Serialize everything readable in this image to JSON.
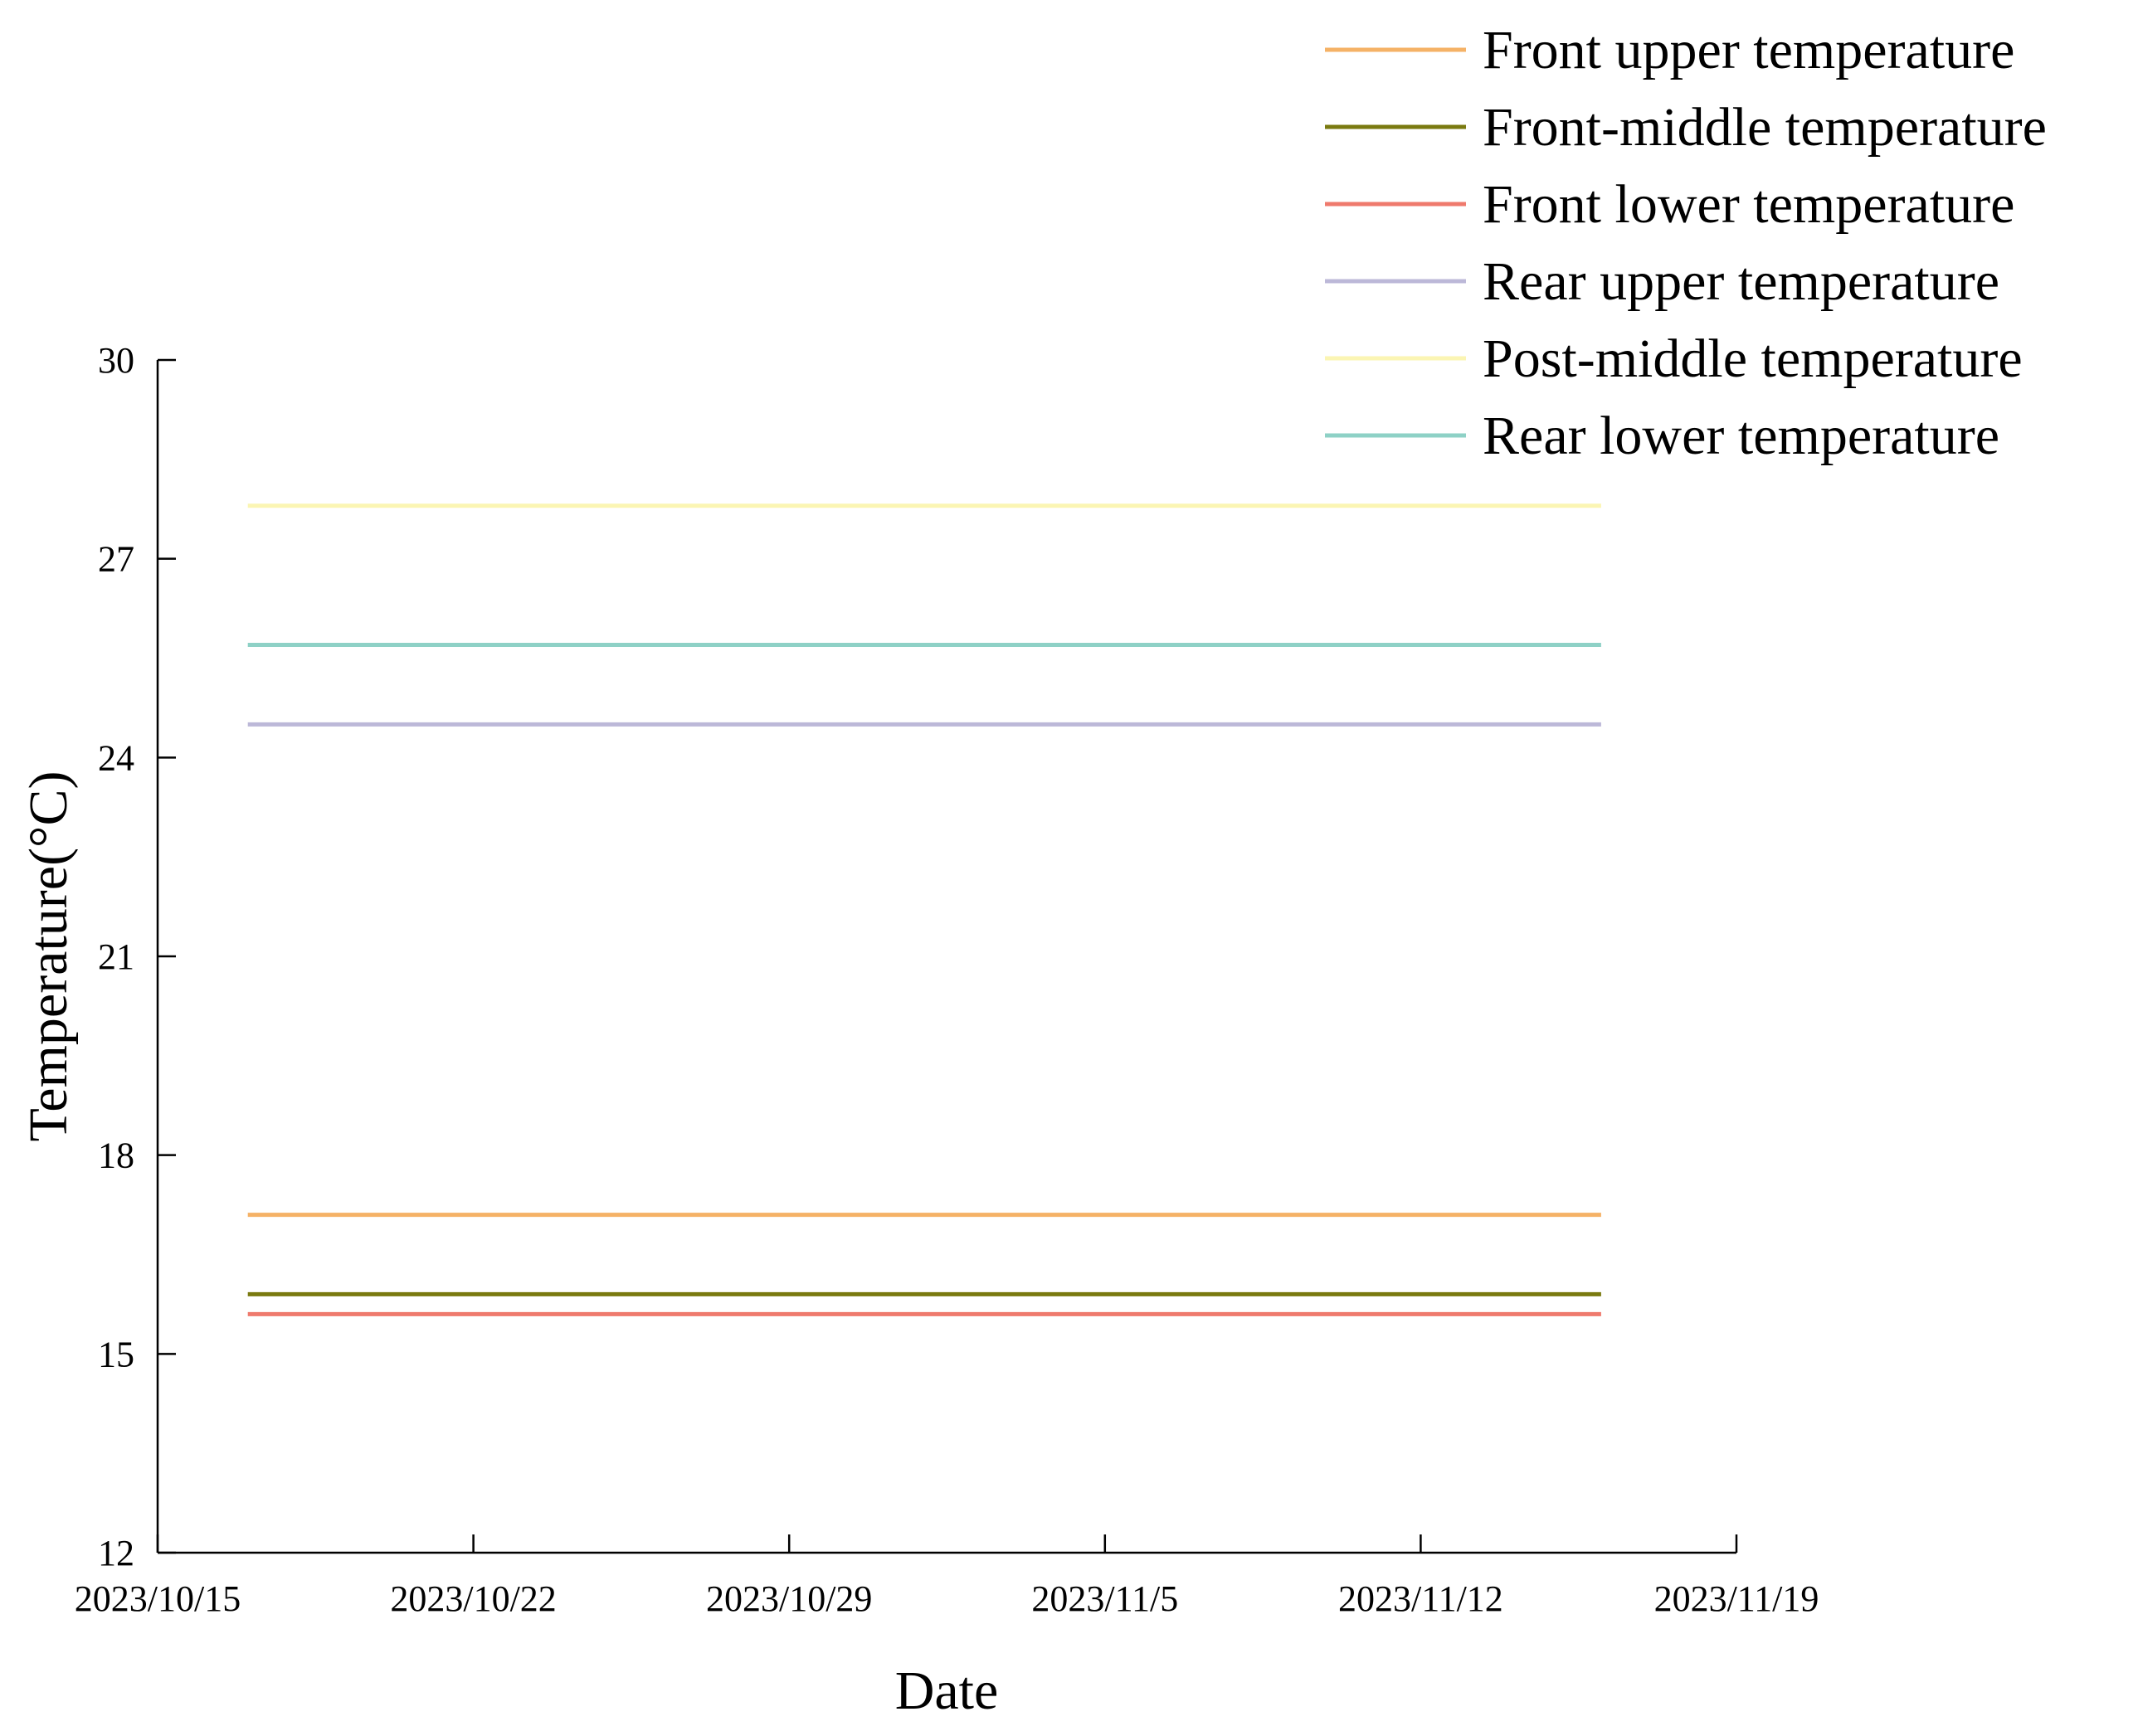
{
  "chart_data": {
    "type": "line",
    "xlabel": "Date",
    "ylabel": "Temperature(°C)",
    "x_ticks": [
      "2023/10/15",
      "2023/10/22",
      "2023/10/29",
      "2023/11/5",
      "2023/11/12",
      "2023/11/19"
    ],
    "xlim": [
      "2023/10/15",
      "2023/11/19"
    ],
    "ylim": [
      12,
      30
    ],
    "y_ticks": [
      12,
      15,
      18,
      21,
      24,
      27,
      30
    ],
    "x": [
      "2023/10/17",
      "2023/11/16"
    ],
    "grid": false,
    "legend_position": "top-right",
    "series": [
      {
        "name": "Front upper temperature",
        "color": "#f5b266",
        "values": [
          17.1,
          17.1
        ]
      },
      {
        "name": "Front-middle temperature",
        "color": "#7a7a10",
        "values": [
          15.9,
          15.9
        ]
      },
      {
        "name": "Front lower temperature",
        "color": "#ef7a6d",
        "values": [
          15.6,
          15.6
        ]
      },
      {
        "name": "Rear upper temperature",
        "color": "#bcb8d8",
        "values": [
          24.5,
          24.5
        ]
      },
      {
        "name": "Post-middle temperature",
        "color": "#fbf5b3",
        "values": [
          27.8,
          27.8
        ]
      },
      {
        "name": "Rear lower temperature",
        "color": "#8ed1c6",
        "values": [
          25.7,
          25.7
        ]
      }
    ]
  }
}
